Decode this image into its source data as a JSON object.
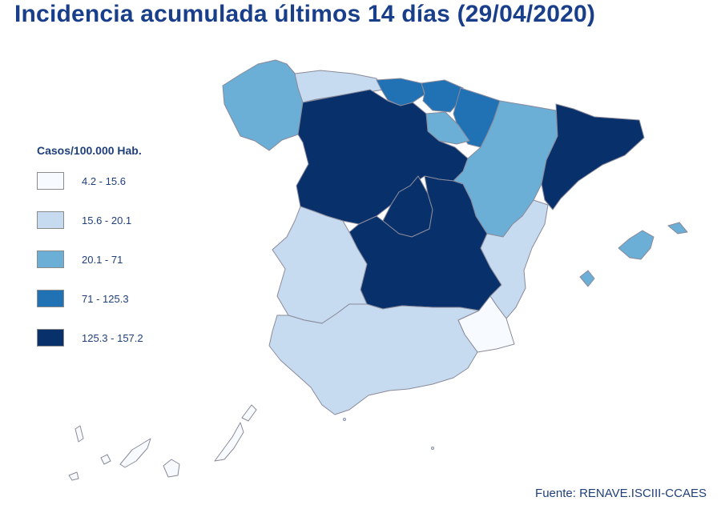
{
  "title": "Incidencia acumulada últimos 14 días (29/04/2020)",
  "legend": {
    "title": "Casos/100.000 Hab.",
    "items": [
      {
        "label": "4.2 - 15.6",
        "color": "#f7fbff"
      },
      {
        "label": "15.6 - 20.1",
        "color": "#c6dbef"
      },
      {
        "label": "20.1 - 71",
        "color": "#6baed6"
      },
      {
        "label": "71 - 125.3",
        "color": "#2171b5"
      },
      {
        "label": "125.3 - 157.2",
        "color": "#08306b"
      }
    ]
  },
  "source": "Fuente: RENAVE.ISCIII-CCAES",
  "colors": {
    "class_1": "#f7fbff",
    "class_2": "#c6dbef",
    "class_3": "#6baed6",
    "class_4": "#2171b5",
    "class_5": "#08306b",
    "border": "#8a8a9a",
    "text": "#1f3f7a"
  }
}
